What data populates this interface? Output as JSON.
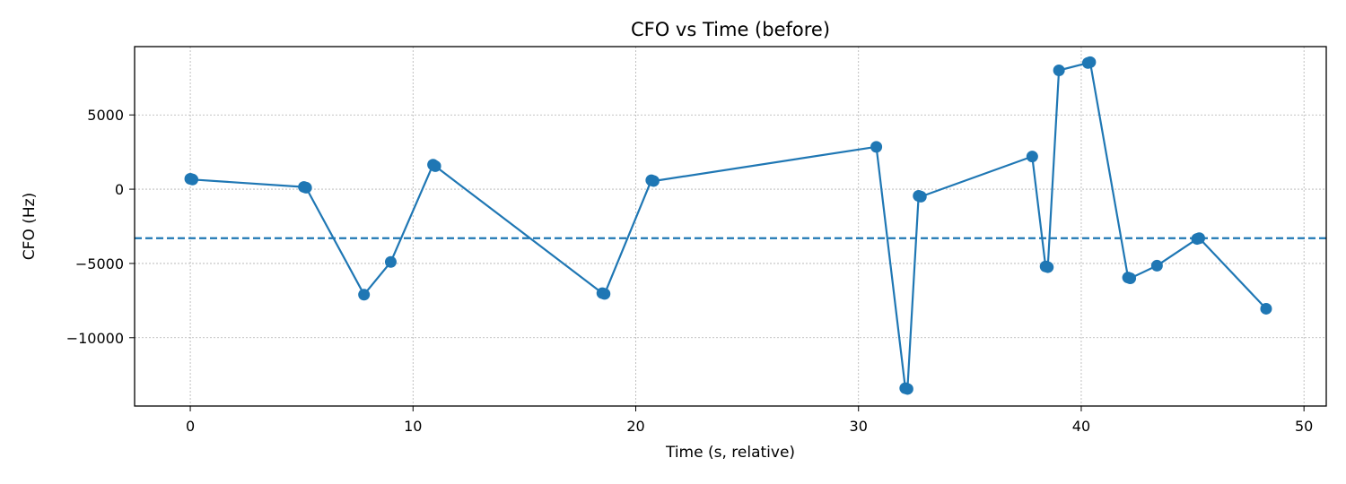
{
  "chart_data": {
    "type": "line",
    "title": "CFO vs Time (before)",
    "xlabel": "Time (s, relative)",
    "ylabel": "CFO (Hz)",
    "xlim": [
      -2.5,
      51
    ],
    "ylim": [
      -14600,
      9600
    ],
    "xticks": [
      0,
      10,
      20,
      30,
      40,
      50
    ],
    "xtick_labels": [
      "0",
      "10",
      "20",
      "30",
      "40",
      "50"
    ],
    "yticks": [
      5000,
      0,
      -5000,
      -10000
    ],
    "ytick_labels": [
      "5000",
      "0",
      "−5000",
      "−10000"
    ],
    "grid": true,
    "series": [
      {
        "color": "#1f77b4",
        "marker": "circle",
        "x": [
          0.0,
          0.1,
          5.1,
          5.2,
          7.8,
          9.0,
          10.9,
          11.0,
          18.5,
          18.6,
          20.7,
          20.8,
          30.8,
          32.1,
          32.2,
          32.7,
          32.8,
          37.8,
          38.4,
          38.5,
          39.0,
          40.3,
          40.4,
          42.1,
          42.2,
          43.4,
          45.2,
          45.3,
          48.3
        ],
        "y": [
          700,
          650,
          150,
          100,
          -7100,
          -4900,
          1650,
          1550,
          -7000,
          -7050,
          600,
          550,
          2850,
          -13400,
          -13450,
          -450,
          -500,
          2200,
          -5200,
          -5250,
          8000,
          8500,
          8550,
          -5950,
          -6000,
          -5150,
          -3350,
          -3300,
          -8050
        ]
      }
    ],
    "reference_lines": [
      {
        "orientation": "horizontal",
        "y": -3300,
        "style": "dashed",
        "color": "#1f77b4"
      }
    ]
  }
}
